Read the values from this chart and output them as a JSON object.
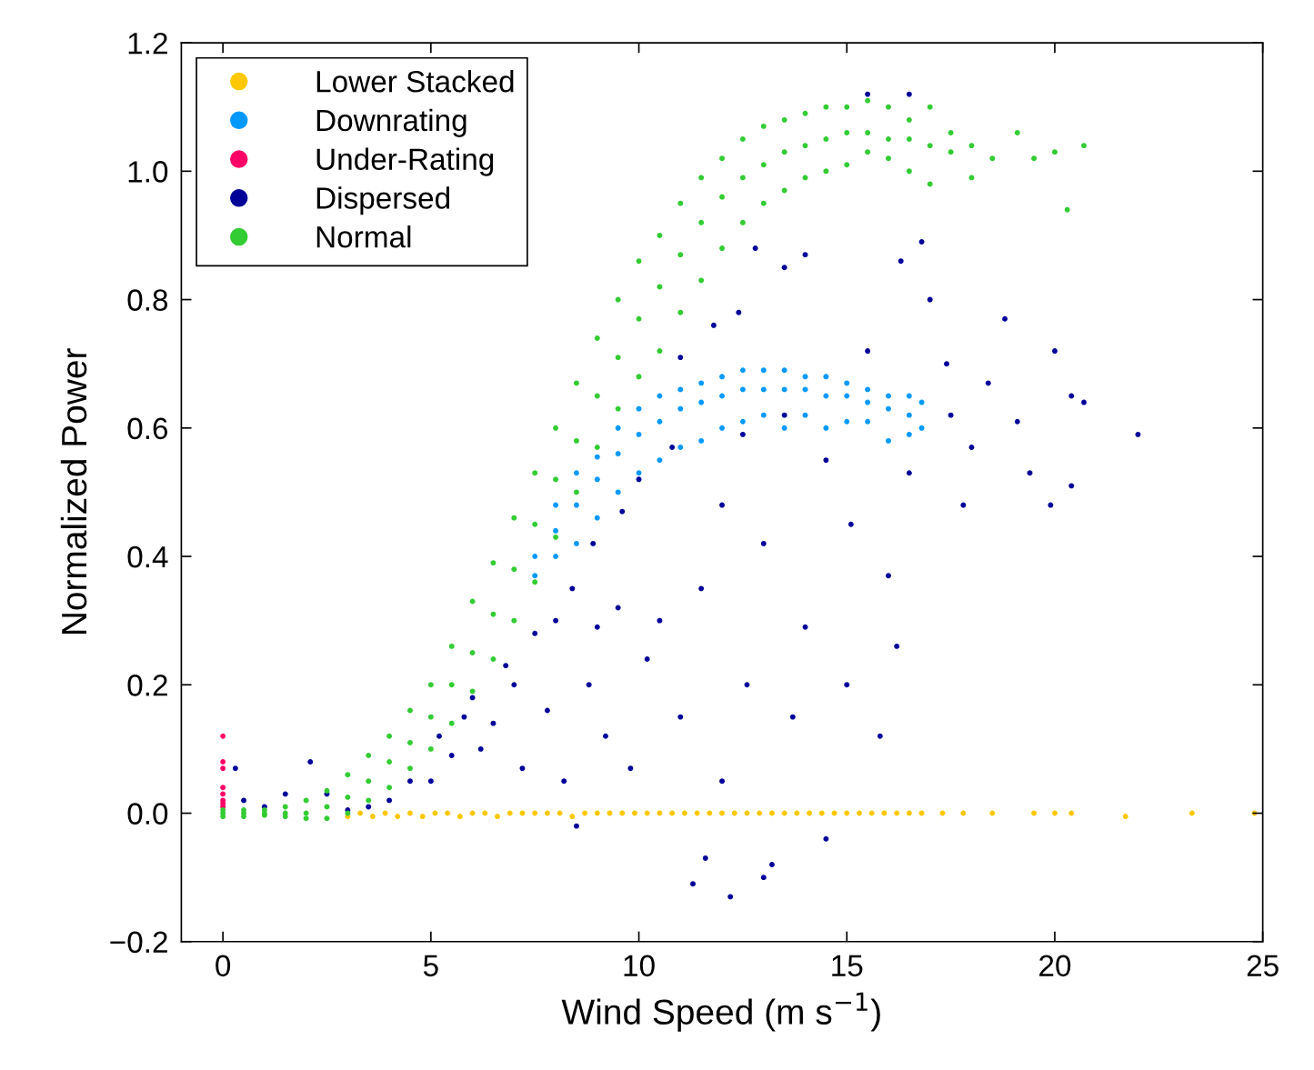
{
  "chart_data": {
    "type": "scatter",
    "xlabel": "Wind Speed (m s$^{−1}$)",
    "ylabel": "Normalized Power",
    "xlim": [
      -1,
      25
    ],
    "ylim": [
      -0.2,
      1.2
    ],
    "xticks": [
      0,
      5,
      10,
      15,
      20,
      25
    ],
    "yticks": [
      {
        "value": -0.2,
        "label": "−0.2"
      },
      {
        "value": 0,
        "label": "0.0"
      },
      {
        "value": 0.2,
        "label": "0.2"
      },
      {
        "value": 0.4,
        "label": "0.4"
      },
      {
        "value": 0.6,
        "label": "0.6"
      },
      {
        "value": 0.8,
        "label": "0.8"
      },
      {
        "value": 1.0,
        "label": "1.0"
      },
      {
        "value": 1.2,
        "label": "1.2"
      }
    ],
    "grid": false,
    "legend": "top left",
    "marker": "circle",
    "series": [
      {
        "name": "Lower Stacked",
        "color": "#ffc800",
        "x": [
          3,
          3.3,
          3.6,
          3.9,
          4.2,
          4.5,
          4.8,
          5.1,
          5.4,
          5.7,
          6,
          6.3,
          6.6,
          6.9,
          7.2,
          7.5,
          7.8,
          8.1,
          8.4,
          8.7,
          9,
          9.3,
          9.6,
          9.9,
          10.2,
          10.5,
          10.8,
          11.1,
          11.4,
          11.7,
          12,
          12.3,
          12.6,
          12.9,
          13.2,
          13.5,
          13.8,
          14.1,
          14.4,
          14.7,
          15,
          15.3,
          15.6,
          15.9,
          16.2,
          16.5,
          16.8,
          17.3,
          17.8,
          18.5,
          19.5,
          20,
          20.4,
          21.7,
          23.3,
          24.8
        ],
        "values": [
          -0.005,
          0,
          -0.005,
          0,
          -0.005,
          0,
          -0.005,
          0,
          0,
          -0.005,
          0,
          0,
          -0.005,
          0,
          0,
          0,
          0,
          0,
          -0.005,
          0,
          0,
          0,
          0,
          0,
          0,
          0,
          0,
          0,
          0,
          0,
          0,
          0,
          0,
          0,
          0,
          0,
          0,
          0,
          0,
          0,
          0,
          0,
          0,
          0,
          0,
          0,
          0,
          0,
          0,
          0,
          0,
          0,
          0,
          -0.005,
          0,
          0
        ]
      },
      {
        "name": "Downrating",
        "color": "#0099ff",
        "x": [
          7.5,
          7.5,
          8,
          8,
          8,
          8.5,
          8.5,
          8.5,
          9,
          9,
          9,
          9.5,
          9.5,
          9.5,
          10,
          10,
          10,
          10.5,
          10.5,
          10.5,
          11,
          11,
          11,
          11.5,
          11.5,
          11.5,
          12,
          12,
          12,
          12.5,
          12.5,
          12.5,
          13,
          13,
          13,
          13.5,
          13.5,
          13.5,
          14,
          14,
          14,
          14.5,
          14.5,
          14.5,
          15,
          15,
          15,
          15.5,
          15.5,
          15.5,
          16,
          16,
          16,
          16.5,
          16.5,
          16.5,
          16.8,
          16.8
        ],
        "values": [
          0.37,
          0.4,
          0.4,
          0.44,
          0.48,
          0.42,
          0.48,
          0.53,
          0.46,
          0.52,
          0.555,
          0.5,
          0.56,
          0.6,
          0.53,
          0.59,
          0.63,
          0.55,
          0.61,
          0.65,
          0.57,
          0.63,
          0.66,
          0.58,
          0.64,
          0.67,
          0.6,
          0.65,
          0.68,
          0.61,
          0.66,
          0.69,
          0.62,
          0.66,
          0.69,
          0.6,
          0.66,
          0.69,
          0.62,
          0.66,
          0.68,
          0.6,
          0.65,
          0.68,
          0.61,
          0.65,
          0.67,
          0.61,
          0.64,
          0.66,
          0.58,
          0.63,
          0.65,
          0.59,
          0.62,
          0.65,
          0.6,
          0.64
        ]
      },
      {
        "name": "Under-Rating",
        "color": "#ff0066",
        "x": [
          0,
          0,
          0,
          0,
          0,
          0,
          0,
          0
        ],
        "values": [
          0.015,
          0.01,
          0.02,
          0.03,
          0.04,
          0.07,
          0.08,
          0.12
        ]
      },
      {
        "name": "Dispersed",
        "color": "#000099",
        "x": [
          0.3,
          0.5,
          1,
          1.5,
          2.1,
          2.5,
          3,
          3.5,
          4,
          4.5,
          5,
          5.2,
          5.5,
          5.8,
          6,
          6.2,
          6.5,
          6.8,
          7,
          7.2,
          7.5,
          7.8,
          8,
          8.2,
          8.4,
          8.5,
          8.8,
          8.9,
          9,
          9.2,
          9.5,
          9.6,
          9.8,
          10,
          10.2,
          10.5,
          10.8,
          11,
          11,
          11.3,
          11.5,
          11.6,
          11.8,
          12,
          12,
          12.2,
          12.4,
          12.5,
          12.6,
          12.8,
          13,
          13,
          13.2,
          13.5,
          13.5,
          13.7,
          14,
          14,
          14.5,
          14.5,
          15,
          15.1,
          15.5,
          15.5,
          15.8,
          16,
          16.2,
          16.3,
          16.5,
          16.5,
          16.8,
          17,
          17.4,
          17.5,
          17.8,
          18,
          18.4,
          18.8,
          19.1,
          19.4,
          19.9,
          20,
          20.4,
          20.4,
          20.7,
          22
        ],
        "values": [
          0.07,
          0.02,
          0.01,
          0.03,
          0.08,
          0.03,
          0.005,
          0.01,
          0.02,
          0.05,
          0.05,
          0.12,
          0.09,
          0.15,
          0.18,
          0.1,
          0.14,
          0.23,
          0.2,
          0.07,
          0.28,
          0.16,
          0.3,
          0.05,
          0.35,
          -0.02,
          0.2,
          0.42,
          0.29,
          0.12,
          0.32,
          0.47,
          0.07,
          0.52,
          0.24,
          0.3,
          0.57,
          0.15,
          0.71,
          -0.11,
          0.35,
          -0.07,
          0.76,
          0.48,
          0.05,
          -0.13,
          0.78,
          0.59,
          0.2,
          0.88,
          0.42,
          -0.1,
          -0.08,
          0.85,
          0.62,
          0.15,
          0.29,
          0.87,
          0.55,
          -0.04,
          0.2,
          0.45,
          0.72,
          1.12,
          0.12,
          0.37,
          0.26,
          0.86,
          0.53,
          1.12,
          0.89,
          0.8,
          0.7,
          0.62,
          0.48,
          0.57,
          0.67,
          0.77,
          0.61,
          0.53,
          0.48,
          0.72,
          0.51,
          0.65,
          0.64,
          0.59
        ]
      },
      {
        "name": "Normal",
        "color": "#33cc33",
        "x": [
          0,
          0,
          0,
          0.5,
          0.5,
          0.5,
          1,
          1,
          1,
          1.5,
          1.5,
          1.5,
          2,
          2,
          2,
          2.5,
          2.5,
          2.5,
          3,
          3,
          3,
          3.5,
          3.5,
          3.5,
          4,
          4,
          4,
          4.5,
          4.5,
          4.5,
          5,
          5,
          5,
          5.5,
          5.5,
          5.5,
          6,
          6,
          6,
          6.5,
          6.5,
          6.5,
          7,
          7,
          7,
          7.5,
          7.5,
          7.5,
          8,
          8,
          8,
          8.5,
          8.5,
          8.5,
          9,
          9,
          9,
          9.5,
          9.5,
          9.5,
          10,
          10,
          10,
          10.5,
          10.5,
          10.5,
          11,
          11,
          11,
          11.5,
          11.5,
          11.5,
          12,
          12,
          12,
          12.5,
          12.5,
          12.5,
          13,
          13,
          13,
          13.5,
          13.5,
          13.5,
          14,
          14,
          14,
          14.5,
          14.5,
          14.5,
          15,
          15,
          15,
          15.5,
          15.5,
          15.5,
          16,
          16,
          16,
          16.5,
          16.5,
          16.5,
          17,
          17,
          17,
          17.5,
          17.5,
          18,
          18,
          18.5,
          19.1,
          19.5,
          20,
          20.3,
          20.7
        ],
        "values": [
          -0.005,
          0,
          0.005,
          -0.005,
          0,
          0.005,
          -0.003,
          0,
          0.005,
          -0.005,
          0,
          0.01,
          -0.008,
          0,
          0.02,
          -0.008,
          0.01,
          0.035,
          0,
          0.025,
          0.06,
          0.02,
          0.05,
          0.09,
          0.04,
          0.08,
          0.12,
          0.07,
          0.11,
          0.16,
          0.1,
          0.15,
          0.2,
          0.14,
          0.2,
          0.26,
          0.19,
          0.25,
          0.33,
          0.24,
          0.31,
          0.39,
          0.3,
          0.38,
          0.46,
          0.36,
          0.45,
          0.53,
          0.43,
          0.52,
          0.6,
          0.5,
          0.58,
          0.67,
          0.57,
          0.65,
          0.74,
          0.63,
          0.71,
          0.8,
          0.68,
          0.77,
          0.86,
          0.72,
          0.82,
          0.9,
          0.78,
          0.87,
          0.95,
          0.83,
          0.92,
          0.99,
          0.88,
          0.96,
          1.02,
          0.92,
          0.99,
          1.05,
          0.95,
          1.01,
          1.07,
          0.97,
          1.03,
          1.08,
          0.99,
          1.04,
          1.09,
          1.0,
          1.05,
          1.1,
          1.01,
          1.06,
          1.1,
          1.03,
          1.06,
          1.11,
          1.02,
          1.05,
          1.1,
          1.0,
          1.05,
          1.08,
          0.98,
          1.04,
          1.1,
          1.03,
          1.06,
          0.99,
          1.04,
          1.02,
          1.06,
          1.02,
          1.03,
          0.94,
          1.04
        ]
      }
    ]
  }
}
